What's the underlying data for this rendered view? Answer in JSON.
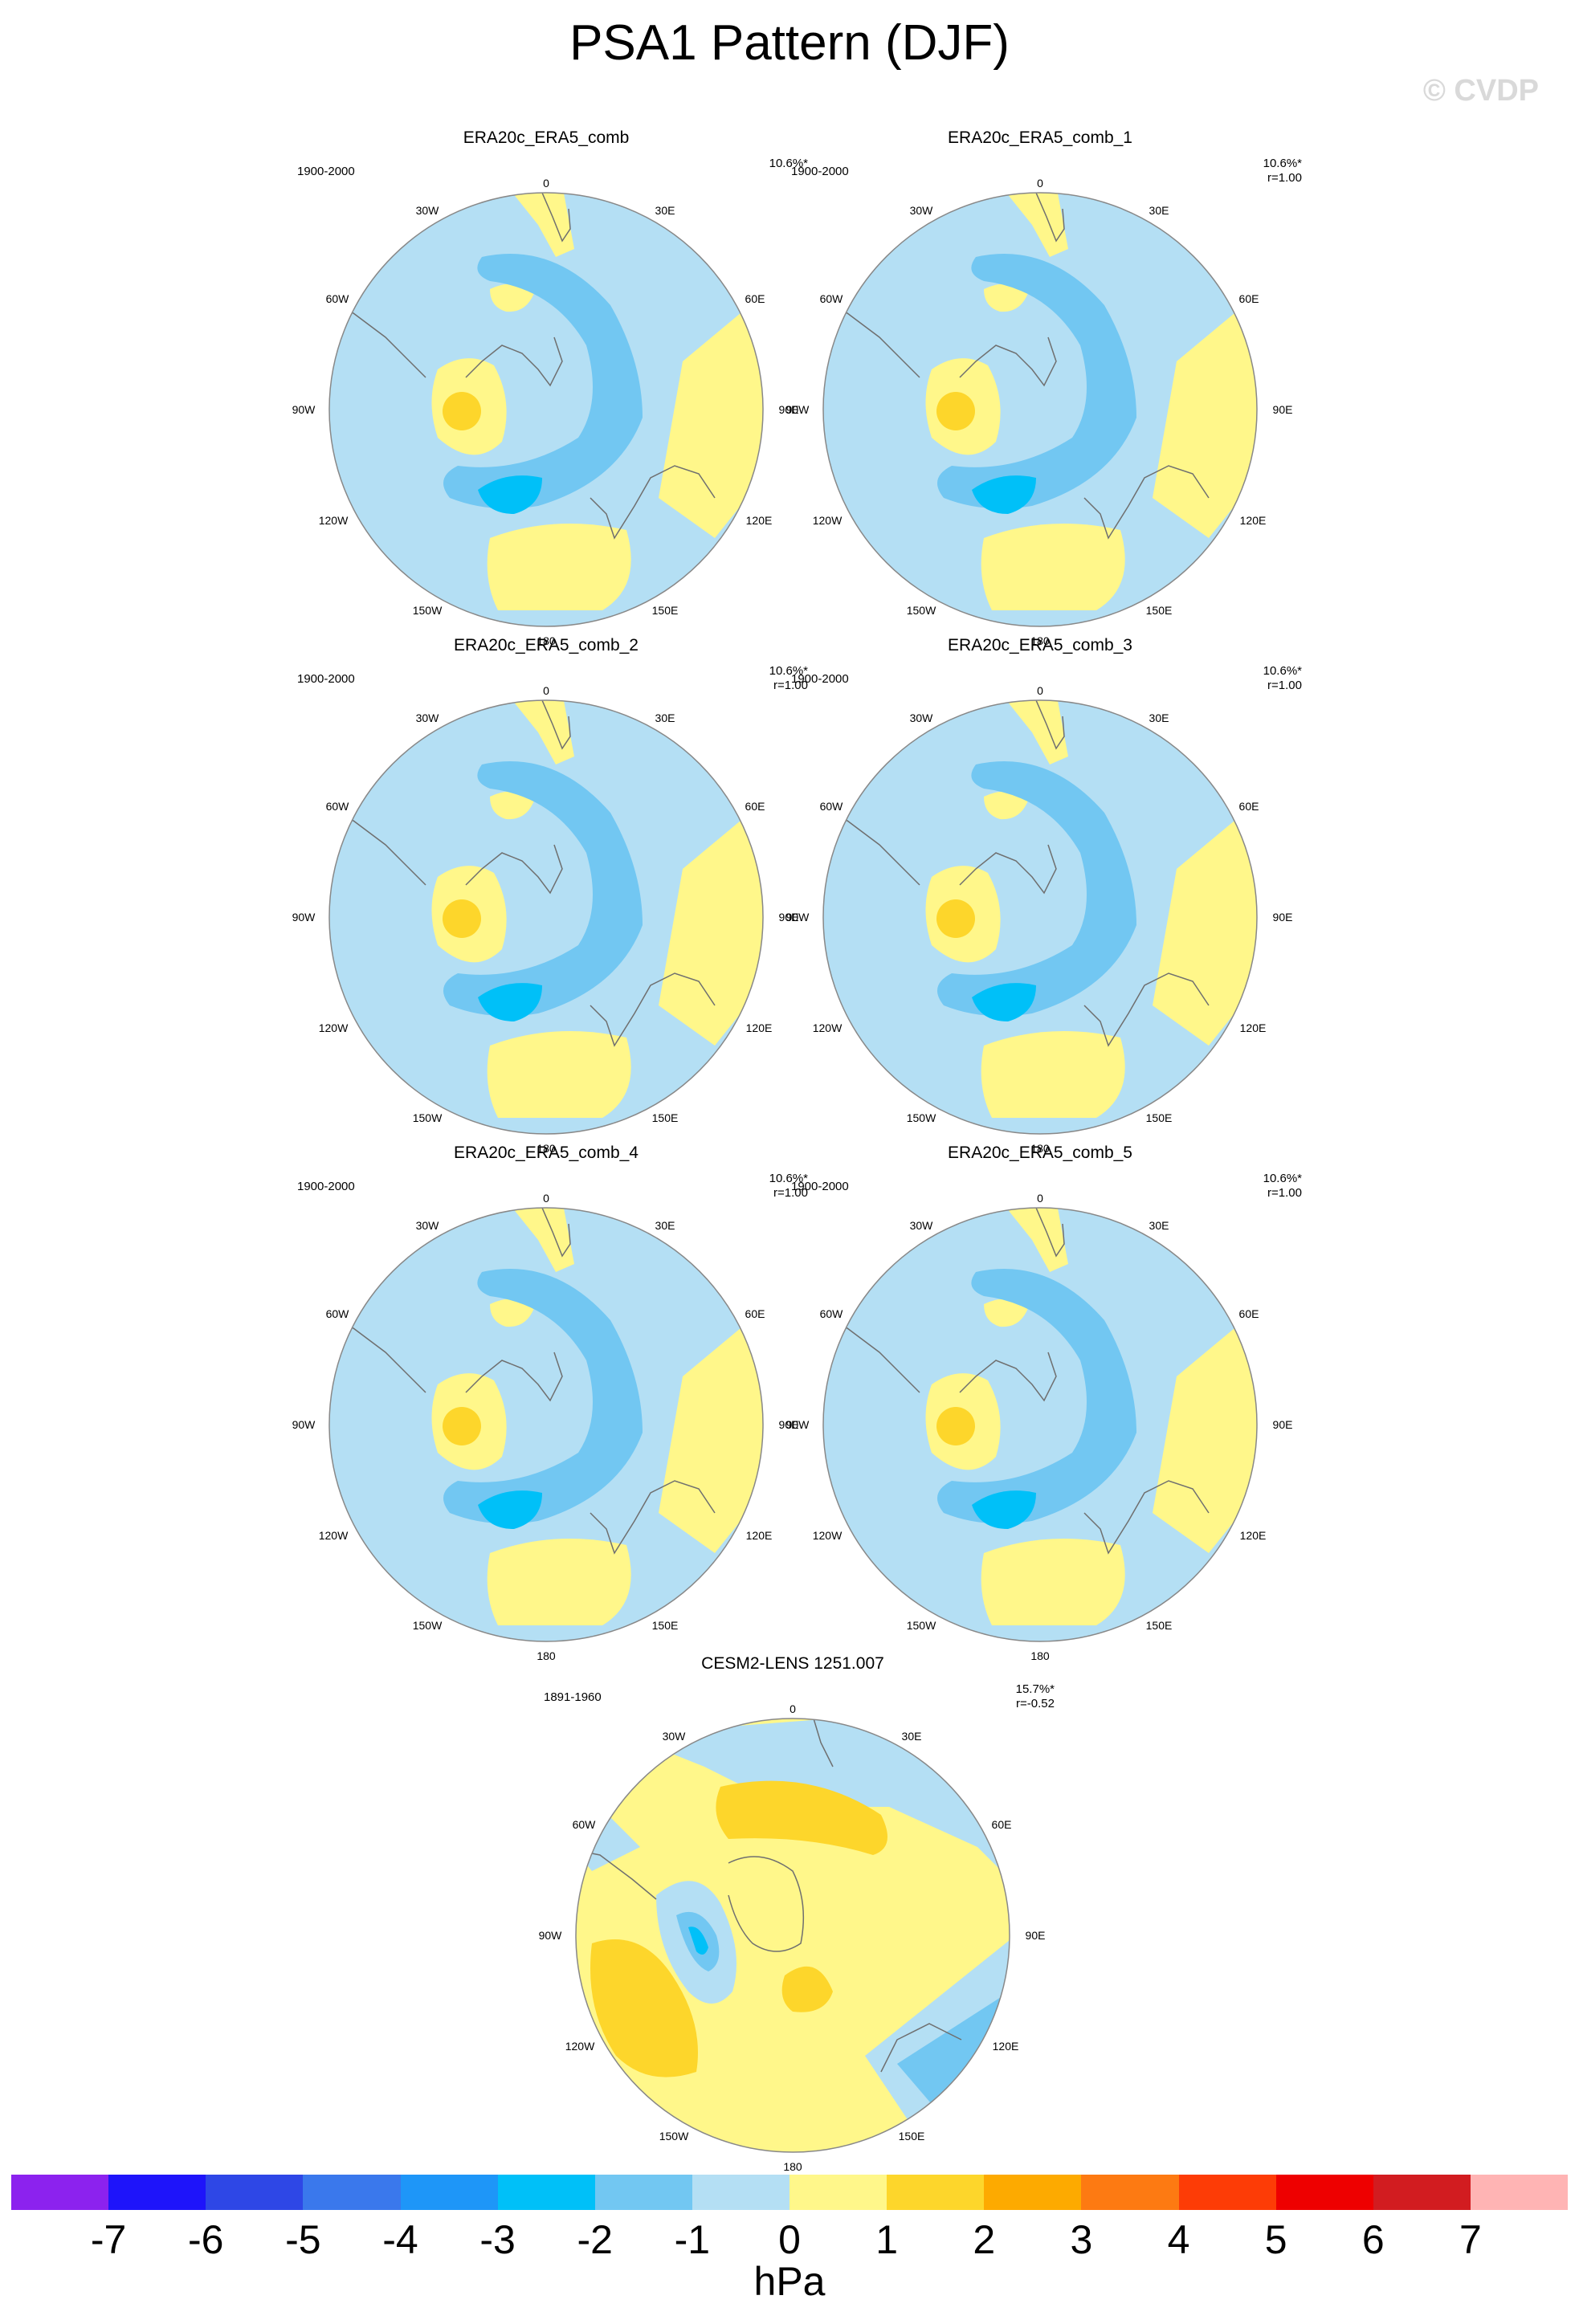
{
  "title": "PSA1 Pattern (DJF)",
  "watermark": "© CVDP",
  "longitude_labels": {
    "top": "0",
    "r30": "30E",
    "r60": "60E",
    "r90": "90E",
    "r120": "120E",
    "r150": "150E",
    "bottom": "180",
    "l30": "30W",
    "l60": "60W",
    "l90": "90W",
    "l120": "120W",
    "l150": "150W"
  },
  "colors": {
    "ocean_neg1": "#b4dff4",
    "neg2": "#72c7f2",
    "neg3": "#00c0f8",
    "pos1": "#fff78a",
    "pos2": "#fdd62b",
    "coast": "#6f6f6f",
    "border": "#888888"
  },
  "panels": [
    {
      "title": "ERA20c_ERA5_comb",
      "period": "1900-2000",
      "pct": "10.6%*",
      "corr": ""
    },
    {
      "title": "ERA20c_ERA5_comb_1",
      "period": "1900-2000",
      "pct": "10.6%*",
      "corr": "r=1.00"
    },
    {
      "title": "ERA20c_ERA5_comb_2",
      "period": "1900-2000",
      "pct": "10.6%*",
      "corr": "r=1.00"
    },
    {
      "title": "ERA20c_ERA5_comb_3",
      "period": "1900-2000",
      "pct": "10.6%*",
      "corr": "r=1.00"
    },
    {
      "title": "ERA20c_ERA5_comb_4",
      "period": "1900-2000",
      "pct": "10.6%*",
      "corr": "r=1.00"
    },
    {
      "title": "ERA20c_ERA5_comb_5",
      "period": "1900-2000",
      "pct": "10.6%*",
      "corr": "r=1.00"
    },
    {
      "title": "CESM2-LENS 1251.007",
      "period": "1891-1960",
      "pct": "15.7%*",
      "corr": "r=-0.52"
    }
  ],
  "colorbar": {
    "colors": [
      "#8c22ee",
      "#1e14fa",
      "#2e47e6",
      "#3a78ec",
      "#1e96f8",
      "#00c0f8",
      "#72c7f2",
      "#b4dff4",
      "#fff78a",
      "#fdd62b",
      "#fdaa00",
      "#fd7a12",
      "#fd3c06",
      "#ee0000",
      "#d21c20",
      "#ffb4b4"
    ],
    "ticks": [
      "-7",
      "-6",
      "-5",
      "-4",
      "-3",
      "-2",
      "-1",
      "0",
      "1",
      "2",
      "3",
      "4",
      "5",
      "6",
      "7"
    ],
    "units": "hPa"
  }
}
